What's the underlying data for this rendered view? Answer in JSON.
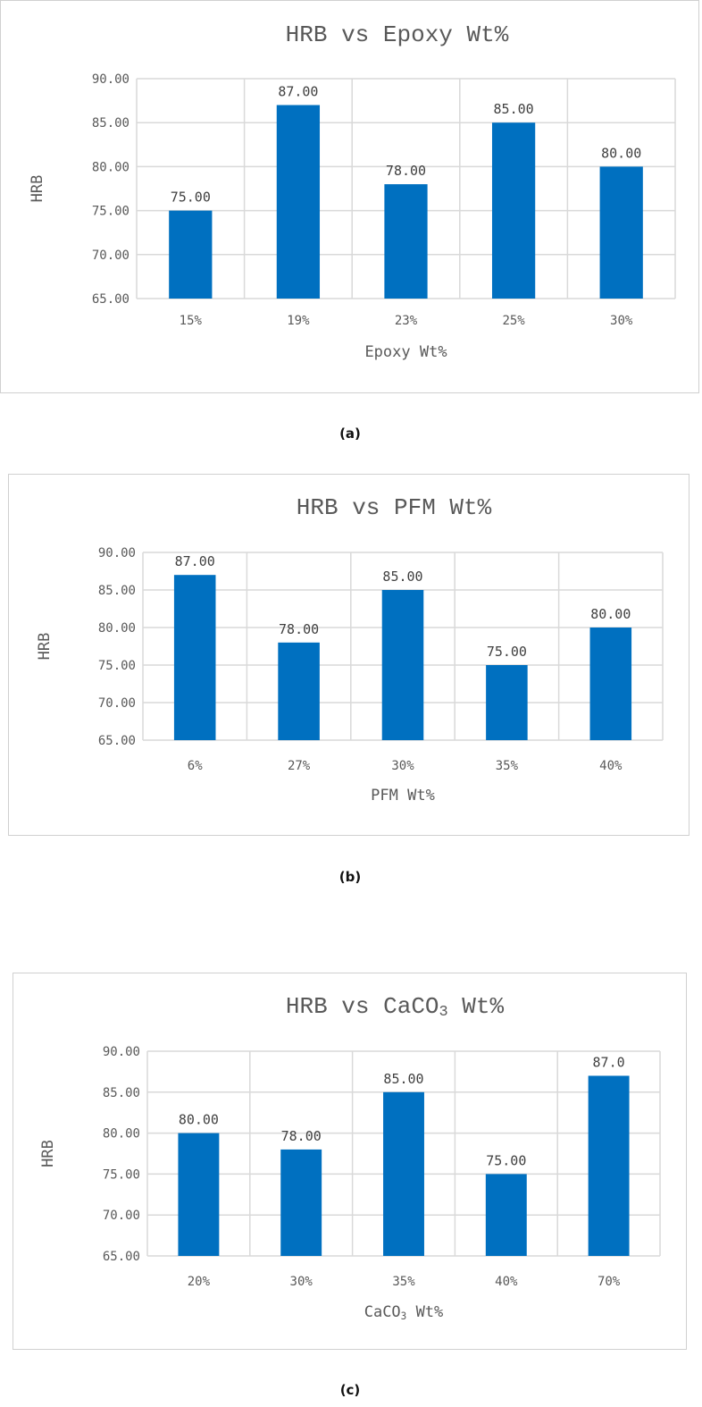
{
  "chart_data": [
    {
      "type": "bar",
      "title": "HRB vs Epoxy Wt%",
      "xlabel": "Epoxy Wt%",
      "ylabel": "HRB",
      "categories": [
        "15%",
        "19%",
        "23%",
        "25%",
        "30%"
      ],
      "values": [
        75,
        87,
        78,
        85,
        80
      ],
      "data_labels": [
        "75.00",
        "87.00",
        "78.00",
        "85.00",
        "80.00"
      ],
      "ylim": [
        65,
        90
      ],
      "yticks": [
        "65.00",
        "70.00",
        "75.00",
        "80.00",
        "85.00",
        "90.00"
      ],
      "grid": true,
      "bar_color": "#0070C0",
      "caption": "(a)"
    },
    {
      "type": "bar",
      "title": "HRB vs PFM Wt%",
      "xlabel": "PFM Wt%",
      "ylabel": "HRB",
      "categories": [
        "6%",
        "27%",
        "30%",
        "35%",
        "40%"
      ],
      "values": [
        87,
        78,
        85,
        75,
        80
      ],
      "data_labels": [
        "87.00",
        "78.00",
        "85.00",
        "75.00",
        "80.00"
      ],
      "ylim": [
        65,
        90
      ],
      "yticks": [
        "65.00",
        "70.00",
        "75.00",
        "80.00",
        "85.00",
        "90.00"
      ],
      "grid": true,
      "bar_color": "#0070C0",
      "caption": "(b)"
    },
    {
      "type": "bar",
      "title": "HRB vs CaCO3 Wt%",
      "xlabel": "CaCO3 Wt%",
      "ylabel": "HRB",
      "categories": [
        "20%",
        "30%",
        "35%",
        "40%",
        "70%"
      ],
      "values": [
        80,
        78,
        85,
        75,
        87
      ],
      "data_labels": [
        "80.00",
        "78.00",
        "85.00",
        "75.00",
        "87.0"
      ],
      "ylim": [
        65,
        90
      ],
      "yticks": [
        "65.00",
        "70.00",
        "75.00",
        "80.00",
        "85.00",
        "90.00"
      ],
      "grid": true,
      "bar_color": "#0070C0",
      "caption": "(c)"
    }
  ]
}
